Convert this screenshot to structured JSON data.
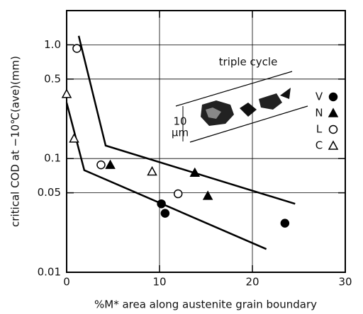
{
  "chart_data": {
    "type": "scatter",
    "xlabel": "%M* area along austenite grain boundary",
    "ylabel": "critical COD at −10℃(ave)(mm)",
    "yscale": "log",
    "grid": true,
    "xlim": [
      0,
      30
    ],
    "xticks": [
      0,
      10,
      20,
      30
    ],
    "ylim": [
      0.01,
      2
    ],
    "yticks": [
      {
        "value": 1,
        "label": "1.0"
      },
      0.5,
      0.1,
      0.05,
      0.01
    ],
    "series": [
      {
        "name": "V",
        "marker": "circle",
        "filled": true,
        "color": "#000",
        "x": [
          10.2,
          10.6,
          23.5
        ],
        "values": [
          0.04,
          0.033,
          0.027
        ]
      },
      {
        "name": "N",
        "marker": "triangle",
        "filled": true,
        "color": "#000",
        "x": [
          4.7,
          13.8,
          15.2
        ],
        "values": [
          0.088,
          0.075,
          0.047
        ]
      },
      {
        "name": "L",
        "marker": "circle",
        "filled": false,
        "color": "#000",
        "x": [
          1.1,
          3.7,
          12.0
        ],
        "values": [
          0.93,
          0.088,
          0.049
        ]
      },
      {
        "name": "C",
        "marker": "triangle",
        "filled": false,
        "color": "#000",
        "x": [
          0,
          0.8,
          9.2
        ],
        "values": [
          0.37,
          0.15,
          0.077
        ]
      }
    ],
    "lines": [
      {
        "x": [
          1.3,
          4.2,
          24.6
        ],
        "y": [
          1.2,
          0.13,
          0.04
        ]
      },
      {
        "x": [
          0,
          1.9,
          21.5
        ],
        "y": [
          0.31,
          0.079,
          0.016
        ]
      }
    ],
    "annotations": {
      "inset_title": "triple cycle",
      "scale_value": "10",
      "scale_unit": "μm"
    }
  }
}
